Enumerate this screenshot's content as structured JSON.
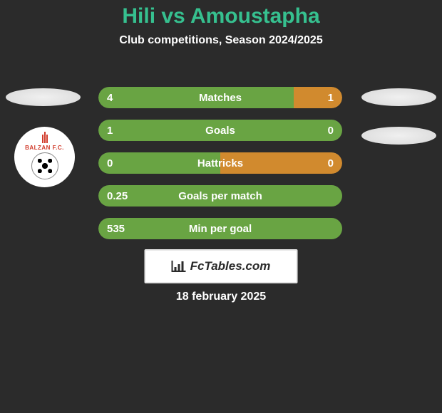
{
  "header": {
    "title": "Hili vs Amoustapha",
    "title_color": "#36c08f",
    "title_fontsize": 30,
    "subtitle": "Club competitions, Season 2024/2025",
    "subtitle_fontsize": 16
  },
  "colors": {
    "background": "#2b2b2b",
    "bar_green": "#69a443",
    "bar_orange": "#d18a2e",
    "text": "#ffffff",
    "badge_fill": "#e8e8e8"
  },
  "club_badge": {
    "name": "BALZAN F.C.",
    "accent": "#d13a2a",
    "secondary": "#2a7a3a"
  },
  "stats": [
    {
      "label": "Matches",
      "left_value": "4",
      "right_value": "1",
      "left_num": 4,
      "right_num": 1,
      "left_pct": 80,
      "right_pct": 20
    },
    {
      "label": "Goals",
      "left_value": "1",
      "right_value": "0",
      "left_num": 1,
      "right_num": 0,
      "left_pct": 100,
      "right_pct": 0
    },
    {
      "label": "Hattricks",
      "left_value": "0",
      "right_value": "0",
      "left_num": 0,
      "right_num": 0,
      "left_pct": 50,
      "right_pct": 50
    },
    {
      "label": "Goals per match",
      "left_value": "0.25",
      "right_value": "",
      "left_num": 0.25,
      "right_num": 0,
      "left_pct": 100,
      "right_pct": 0
    },
    {
      "label": "Min per goal",
      "left_value": "535",
      "right_value": "",
      "left_num": 535,
      "right_num": 0,
      "left_pct": 100,
      "right_pct": 0
    }
  ],
  "brand": {
    "text": "FcTables.com"
  },
  "date": "18 february 2025"
}
